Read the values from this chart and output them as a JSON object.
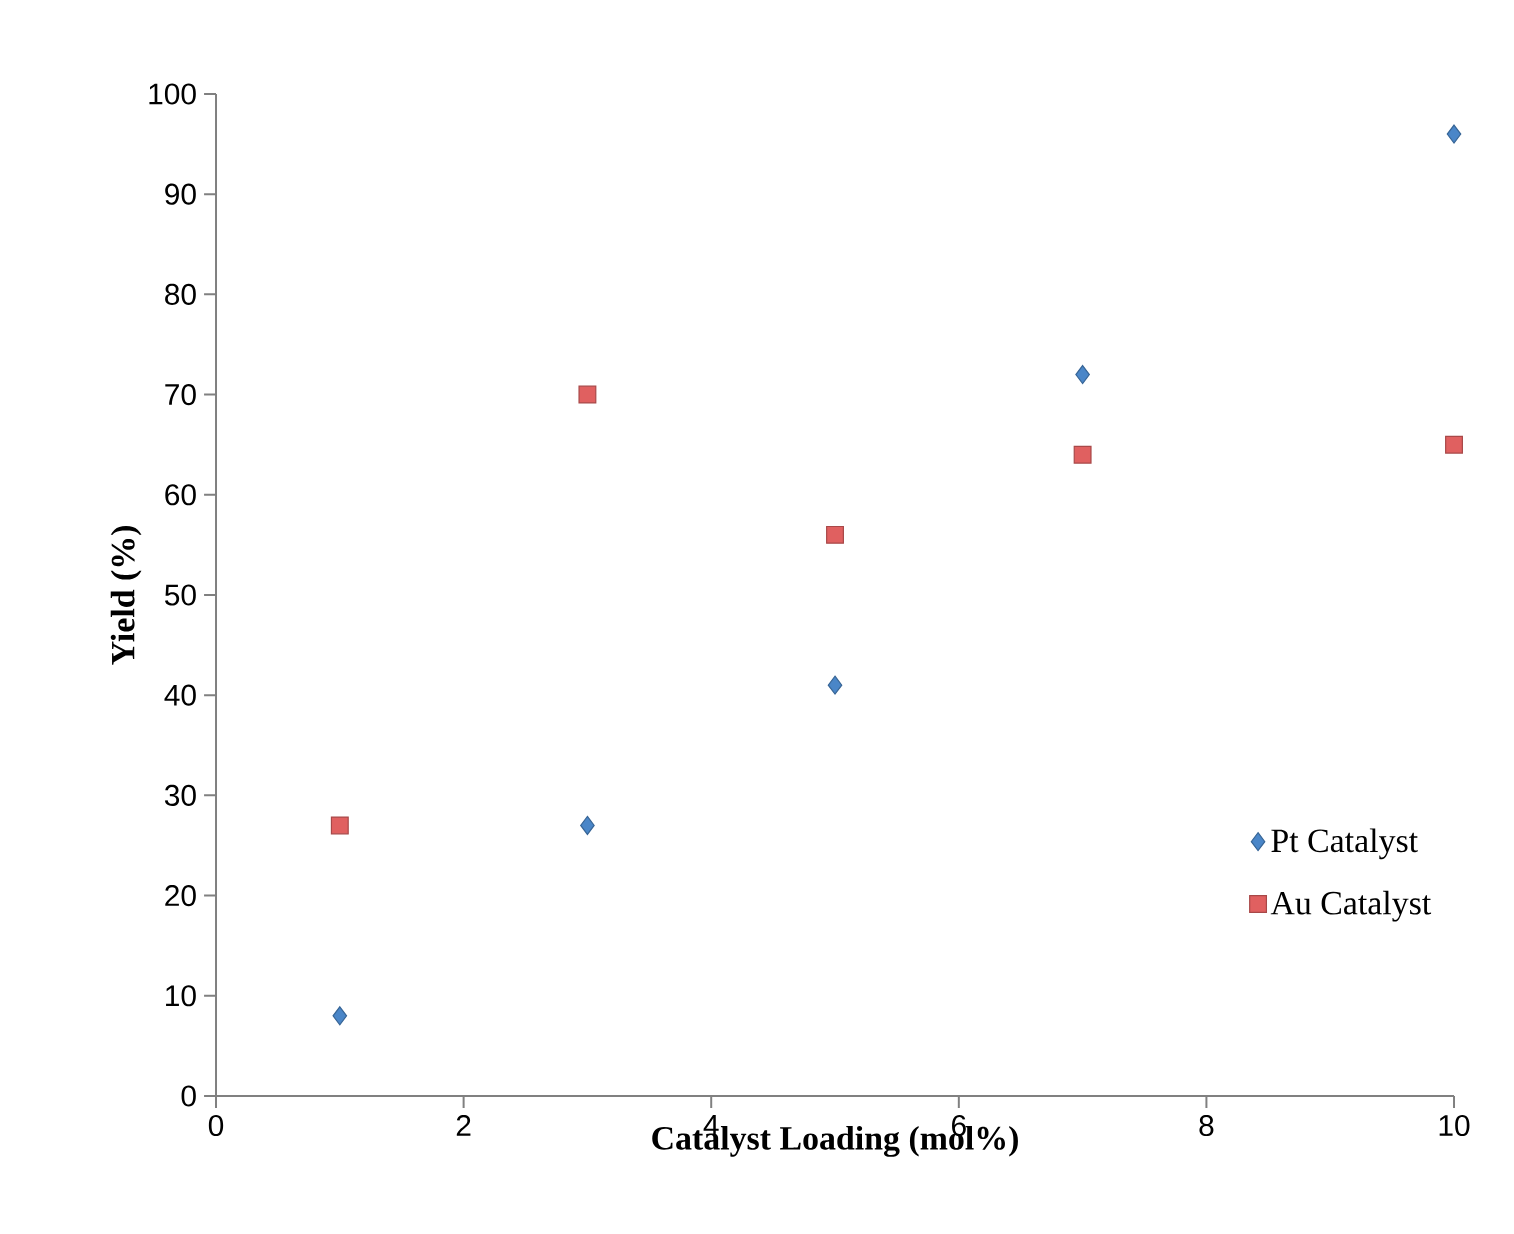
{
  "chart_data": {
    "type": "scatter",
    "xlabel": "Catalyst Loading (mol%)",
    "ylabel": "Yield (%)",
    "x": [
      1,
      3,
      5,
      7,
      10
    ],
    "series": [
      {
        "name": "Pt Catalyst",
        "color": "#4a86c8",
        "marker": "diamond",
        "values": [
          8,
          27,
          41,
          72,
          96
        ]
      },
      {
        "name": "Au Catalyst",
        "color": "#e06060",
        "marker": "square",
        "values": [
          27,
          70,
          56,
          64,
          65
        ]
      }
    ],
    "xlim": [
      0,
      10
    ],
    "ylim": [
      0,
      100
    ],
    "xticks": [
      0,
      2,
      4,
      6,
      8,
      10
    ],
    "yticks": [
      0,
      10,
      20,
      30,
      40,
      50,
      60,
      70,
      80,
      90,
      100
    ],
    "grid": false,
    "legend": "right"
  }
}
